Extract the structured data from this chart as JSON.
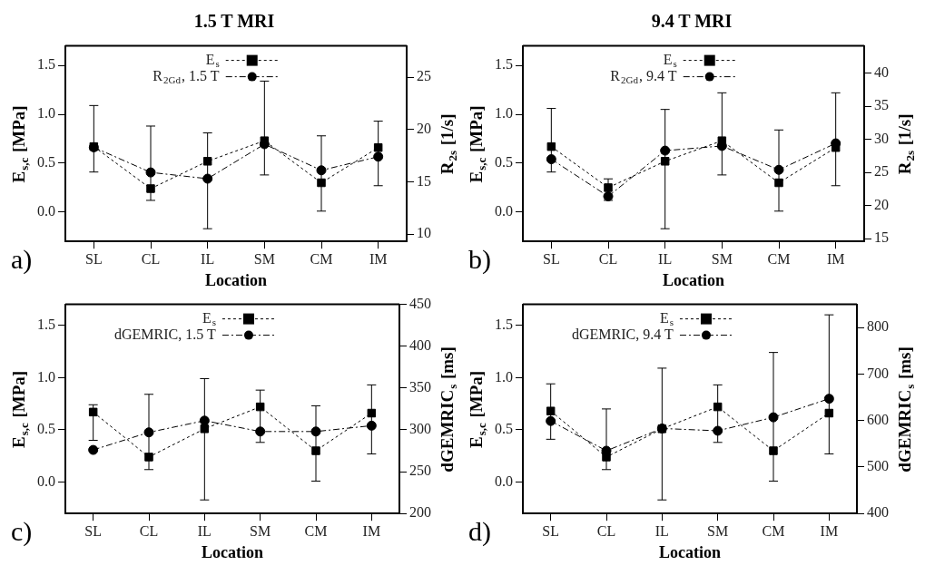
{
  "chart_data": [
    {
      "type": "line",
      "title": "1.5 T MRI",
      "xlabel": "Location",
      "ylabel": "E$_{s,c}$ [MPa]",
      "y2label": "R$_{2s}$ [1/s]",
      "annotations": [
        "a)"
      ],
      "legend": "top",
      "categories": [
        "SL",
        "CL",
        "IL",
        "SM",
        "CM",
        "IM"
      ],
      "ylim": [
        -0.3,
        1.7
      ],
      "yticks": [
        {
          "value": 0,
          "label": "0.0"
        },
        {
          "value": 0.5,
          "label": "0.5"
        },
        {
          "value": 1,
          "label": "1.0"
        },
        {
          "value": 1.5,
          "label": "1.5"
        }
      ],
      "y2lim": [
        9.3,
        28
      ],
      "y2ticks": [
        10,
        15,
        20,
        25
      ],
      "series": [
        {
          "name": "E$_{s}$",
          "color": "#000000",
          "marker": "square",
          "line_style": "dotted",
          "values": [
            0.67,
            0.24,
            0.52,
            0.73,
            0.3,
            0.66
          ],
          "errors": [
            [
              0.41,
              1.09
            ],
            [
              0.12,
              0.88
            ],
            [
              -0.17,
              0.81
            ],
            [
              0.38,
              1.34
            ],
            [
              0.01,
              0.78
            ],
            [
              0.27,
              0.93
            ]
          ]
        },
        {
          "name": "R$_{2Gd}$, 1.5 T",
          "color": "#000000",
          "marker": "circle",
          "line_style": "dashed",
          "axis": "y2",
          "values": [
            18.3,
            15.9,
            15.3,
            18.6,
            16.1,
            17.4
          ]
        }
      ]
    },
    {
      "type": "line",
      "title": "9.4 T MRI",
      "xlabel": "Location",
      "ylabel": "E$_{s,c}$ [MPa]",
      "y2label": "R$_{2s}$ [1/s]",
      "annotations": [
        "b)"
      ],
      "legend": "top",
      "categories": [
        "SL",
        "CL",
        "IL",
        "SM",
        "CM",
        "IM"
      ],
      "ylim": [
        -0.3,
        1.7
      ],
      "yticks": [
        {
          "value": 0,
          "label": "0.0"
        },
        {
          "value": 0.5,
          "label": "0.5"
        },
        {
          "value": 1,
          "label": "1.0"
        },
        {
          "value": 1.5,
          "label": "1.5"
        }
      ],
      "y2lim": [
        14.6,
        44.1
      ],
      "y2ticks": [
        15,
        20,
        25,
        30,
        35,
        40
      ],
      "series": [
        {
          "name": "E$_{s}$",
          "color": "#000000",
          "marker": "square",
          "line_style": "dotted",
          "values": [
            0.67,
            0.25,
            0.52,
            0.73,
            0.3,
            0.66
          ],
          "errors": [
            [
              0.41,
              1.06
            ],
            [
              0.12,
              0.34
            ],
            [
              -0.17,
              1.05
            ],
            [
              0.38,
              1.22
            ],
            [
              0.01,
              0.84
            ],
            [
              0.27,
              1.22
            ]
          ]
        },
        {
          "name": "R$_{2Gd}$, 9.4 T",
          "color": "#000000",
          "marker": "circle",
          "line_style": "dashed",
          "axis": "y2",
          "values": [
            27.0,
            21.4,
            28.3,
            29.0,
            25.4,
            29.4
          ]
        }
      ]
    },
    {
      "type": "line",
      "xlabel": "Location",
      "ylabel": "E$_{s,c}$ [MPa]",
      "y2label": "dGEMRIC$_{s}$ [ms]",
      "annotations": [
        "c)"
      ],
      "legend": "top",
      "categories": [
        "SL",
        "CL",
        "IL",
        "SM",
        "CM",
        "IM"
      ],
      "ylim": [
        -0.3,
        1.7
      ],
      "yticks": [
        {
          "value": 0,
          "label": "0.0"
        },
        {
          "value": 0.5,
          "label": "0.5"
        },
        {
          "value": 1,
          "label": "1.0"
        },
        {
          "value": 1.5,
          "label": "1.5"
        }
      ],
      "y2lim": [
        200,
        450
      ],
      "y2ticks": [
        200,
        250,
        300,
        350,
        400,
        450
      ],
      "series": [
        {
          "name": "E$_{s}$",
          "color": "#000000",
          "marker": "square",
          "line_style": "dotted",
          "values": [
            0.67,
            0.24,
            0.51,
            0.72,
            0.3,
            0.66
          ],
          "errors": [
            [
              0.4,
              0.74
            ],
            [
              0.12,
              0.84
            ],
            [
              -0.17,
              0.99
            ],
            [
              0.38,
              0.88
            ],
            [
              0.01,
              0.73
            ],
            [
              0.27,
              0.93
            ]
          ]
        },
        {
          "name": "dGEMRIC, 1.5 T",
          "color": "#000000",
          "marker": "circle",
          "line_style": "dashed",
          "axis": "y2",
          "values": [
            276,
            297,
            311,
            298,
            298,
            305
          ]
        }
      ]
    },
    {
      "type": "line",
      "xlabel": "Location",
      "ylabel": "E$_{s,c}$ [MPa]",
      "y2label": "dGEMRIC$_{s}$ [ms]",
      "annotations": [
        "d)"
      ],
      "legend": "top",
      "categories": [
        "SL",
        "CL",
        "IL",
        "SM",
        "CM",
        "IM"
      ],
      "ylim": [
        -0.3,
        1.7
      ],
      "yticks": [
        {
          "value": 0,
          "label": "0.0"
        },
        {
          "value": 0.5,
          "label": "0.5"
        },
        {
          "value": 1,
          "label": "1.0"
        },
        {
          "value": 1.5,
          "label": "1.5"
        }
      ],
      "y2lim": [
        400,
        850
      ],
      "y2ticks": [
        400,
        500,
        600,
        700,
        800
      ],
      "series": [
        {
          "name": "E$_{s}$",
          "color": "#000000",
          "marker": "square",
          "line_style": "dotted",
          "values": [
            0.68,
            0.24,
            0.51,
            0.72,
            0.3,
            0.66
          ],
          "errors": [
            [
              0.41,
              0.94
            ],
            [
              0.12,
              0.7
            ],
            [
              -0.17,
              1.09
            ],
            [
              0.38,
              0.93
            ],
            [
              0.01,
              1.24
            ],
            [
              0.27,
              1.6
            ]
          ]
        },
        {
          "name": "dGEMRIC, 9.4 T",
          "color": "#000000",
          "marker": "circle",
          "line_style": "dashed",
          "axis": "y2",
          "values": [
            599,
            535,
            583,
            578,
            607,
            647
          ]
        }
      ]
    }
  ]
}
